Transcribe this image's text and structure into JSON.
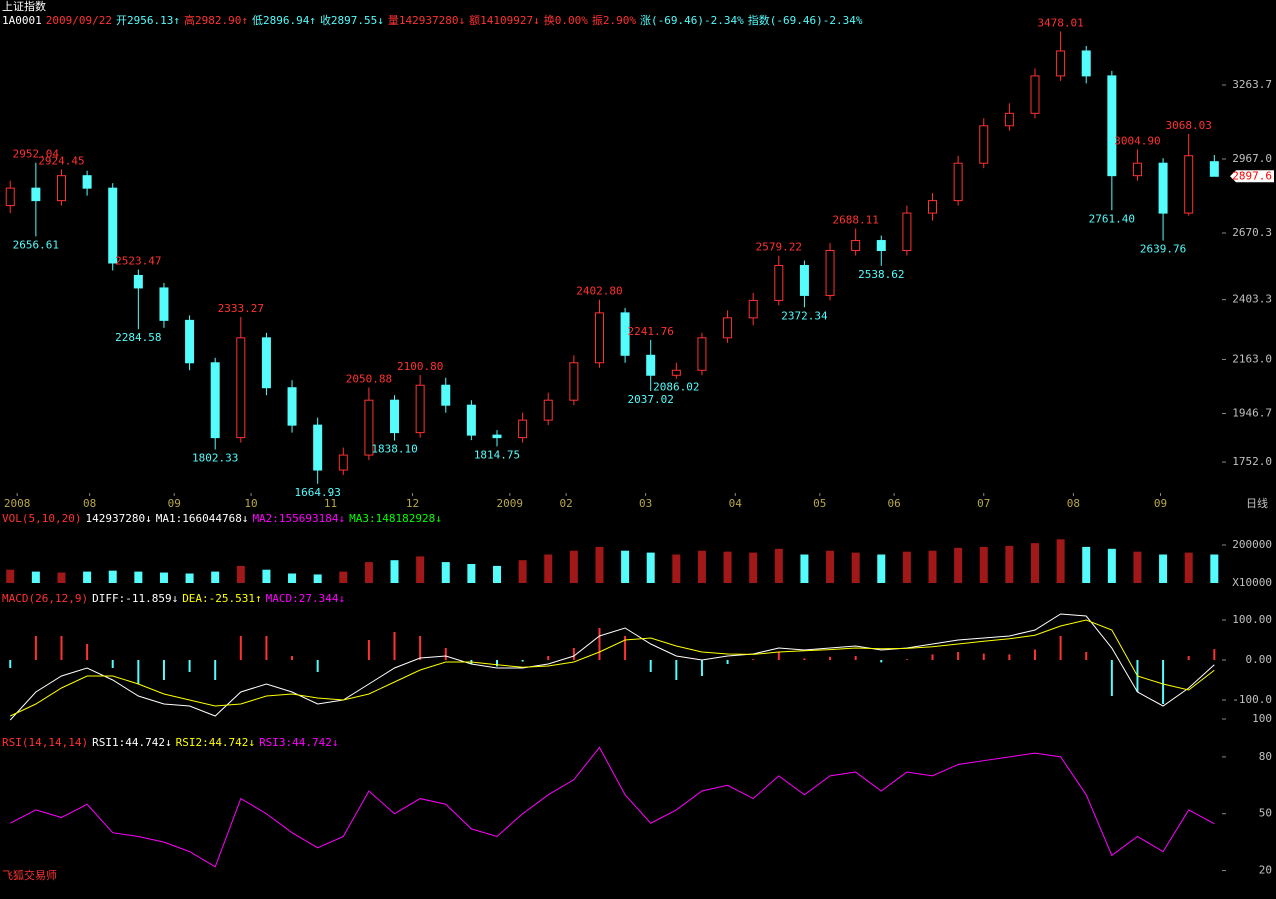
{
  "header": {
    "title": "上证指数",
    "items": [
      {
        "text": "1A0001",
        "color": "#ffffff"
      },
      {
        "text": "2009/09/22",
        "color": "#ff3232"
      },
      {
        "text": "开2956.13↑",
        "color": "#54fcfc"
      },
      {
        "text": "高2982.90↑",
        "color": "#ff3232"
      },
      {
        "text": "低2896.94↑",
        "color": "#54fcfc"
      },
      {
        "text": "收2897.55↓",
        "color": "#54fcfc"
      },
      {
        "text": "量142937280↓",
        "color": "#ff3232"
      },
      {
        "text": "额14109927↓",
        "color": "#ff3232"
      },
      {
        "text": "换0.00%",
        "color": "#ff3232"
      },
      {
        "text": "振2.90%",
        "color": "#ff3232"
      },
      {
        "text": "涨(-69.46)-2.34%",
        "color": "#54fcfc"
      },
      {
        "text": "指数(-69.46)-2.34%",
        "color": "#54fcfc"
      }
    ]
  },
  "footer": "飞狐交易师",
  "chart_data": [
    {
      "type": "candlestick",
      "open": [
        2780,
        2850,
        2800,
        2900,
        2850,
        2500,
        2450,
        2320,
        2150,
        1850,
        2250,
        2050,
        1900,
        1720,
        1780,
        2000,
        1870,
        2060,
        1980,
        1860,
        1850,
        1920,
        2000,
        2150,
        2350,
        2180,
        2100,
        2120,
        2250,
        2330,
        2400,
        2540,
        2420,
        2600,
        2640,
        2600,
        2750,
        2800,
        2950,
        3100,
        3150,
        3300,
        3400,
        3300,
        2900,
        2950,
        2750,
        2956.13
      ],
      "high": [
        2880,
        2952.04,
        2924.45,
        2920,
        2870,
        2523.47,
        2470,
        2340,
        2170,
        2333.27,
        2270,
        2080,
        1930,
        1810,
        2050.88,
        2020,
        2100.8,
        2090,
        2000,
        1880,
        1950,
        2030,
        2180,
        2402.8,
        2370,
        2241.76,
        2150,
        2270,
        2360,
        2430,
        2579.22,
        2560,
        2630,
        2688.11,
        2660,
        2780,
        2830,
        2980,
        3130,
        3190,
        3330,
        3478.01,
        3420,
        3320,
        3004.9,
        2970,
        3068.03,
        2982.9
      ],
      "low": [
        2750,
        2656.61,
        2780,
        2820,
        2520,
        2284.58,
        2290,
        2120,
        1802.33,
        1830,
        2020,
        1870,
        1664.93,
        1700,
        1760,
        1838.1,
        1850,
        1950,
        1840,
        1814.75,
        1830,
        1900,
        1980,
        2130,
        2150,
        2037.02,
        2086.02,
        2100,
        2230,
        2300,
        2380,
        2372.34,
        2400,
        2580,
        2538.62,
        2580,
        2720,
        2780,
        2930,
        3080,
        3130,
        3280,
        3270,
        2761.4,
        2880,
        2639.76,
        2740,
        2896.94
      ],
      "close": [
        2850,
        2800,
        2900,
        2850,
        2550,
        2450,
        2320,
        2150,
        1850,
        2250,
        2050,
        1900,
        1720,
        1780,
        2000,
        1870,
        2060,
        1980,
        1860,
        1850,
        1920,
        2000,
        2150,
        2350,
        2180,
        2100,
        2120,
        2250,
        2330,
        2400,
        2540,
        2420,
        2600,
        2640,
        2600,
        2750,
        2800,
        2950,
        3100,
        3150,
        3300,
        3400,
        3300,
        2900,
        2950,
        2750,
        2980,
        2897.55
      ],
      "up_color": "#ff3232",
      "down_color": "#54fcfc",
      "xlim": [
        -0.4,
        47.3
      ],
      "xticks": [
        {
          "value": 0.27,
          "label": "2008"
        },
        {
          "value": 3.1,
          "label": "08"
        },
        {
          "value": 6.4,
          "label": "09"
        },
        {
          "value": 9.4,
          "label": "10"
        },
        {
          "value": 12.5,
          "label": "11"
        },
        {
          "value": 15.7,
          "label": "12"
        },
        {
          "value": 19.5,
          "label": "2009"
        },
        {
          "value": 21.7,
          "label": "02"
        },
        {
          "value": 24.8,
          "label": "03"
        },
        {
          "value": 28.3,
          "label": "04"
        },
        {
          "value": 31.6,
          "label": "05"
        },
        {
          "value": 34.5,
          "label": "06"
        },
        {
          "value": 38,
          "label": "07"
        },
        {
          "value": 41.5,
          "label": "08"
        },
        {
          "value": 44.9,
          "label": "09"
        }
      ],
      "x_label": "日线",
      "ylim": [
        1640,
        3484
      ],
      "yticks": [
        3263.7,
        {
          "value": 2967,
          "label": "2967.0"
        },
        2670.3,
        2403.3,
        {
          "value": 2163,
          "label": "2163.0"
        },
        1946.7,
        {
          "value": 1752,
          "label": "1752.0"
        }
      ],
      "high_labels": [
        {
          "index": 1,
          "label": "2952.04"
        },
        {
          "index": 2,
          "label": "2924.45"
        },
        {
          "index": 5,
          "label": "2523.47"
        },
        {
          "index": 9,
          "label": "2333.27"
        },
        {
          "index": 14,
          "label": "2050.88"
        },
        {
          "index": 16,
          "label": "2100.80"
        },
        {
          "index": 23,
          "label": "2402.80"
        },
        {
          "index": 25,
          "label": "2241.76"
        },
        {
          "index": 30,
          "label": "2579.22"
        },
        {
          "index": 33,
          "label": "2688.11"
        },
        {
          "index": 41,
          "label": "3478.01"
        },
        {
          "index": 44,
          "label": "3004.90"
        },
        {
          "index": 46,
          "label": "3068.03"
        }
      ],
      "low_labels": [
        {
          "index": 1,
          "label": "2656.61"
        },
        {
          "index": 5,
          "label": "2284.58"
        },
        {
          "index": 8,
          "label": "1802.33"
        },
        {
          "index": 12,
          "label": "1664.93"
        },
        {
          "index": 15,
          "label": "1838.10"
        },
        {
          "index": 19,
          "label": "1814.75"
        },
        {
          "index": 25,
          "label": "2037.02"
        },
        {
          "index": 26,
          "label": "2086.02"
        },
        {
          "index": 31,
          "label": "2372.34"
        },
        {
          "index": 34,
          "label": "2538.62"
        },
        {
          "index": 43,
          "label": "2761.40"
        },
        {
          "index": 45,
          "label": "2639.76"
        }
      ],
      "last_price": {
        "value": 2897.55,
        "label": "2897.6"
      }
    },
    {
      "type": "bar",
      "values": [
        70000,
        60000,
        55000,
        60000,
        65000,
        60000,
        55000,
        50000,
        60000,
        90000,
        70000,
        50000,
        45000,
        60000,
        110000,
        120000,
        140000,
        110000,
        100000,
        90000,
        120000,
        150000,
        170000,
        190000,
        170000,
        160000,
        150000,
        170000,
        165000,
        160000,
        180000,
        150000,
        170000,
        160000,
        150000,
        165000,
        170000,
        185000,
        190000,
        195000,
        210000,
        230000,
        190000,
        180000,
        165000,
        150000,
        160000,
        150000
      ],
      "ylim": [
        0,
        300000
      ],
      "yticks": [
        200000
      ],
      "unit_label": "X10000",
      "legend": [
        {
          "text": "VOL(5,10,20)",
          "color": "#ff3232"
        },
        {
          "text": "142937280↓",
          "color": "#ffffff"
        },
        {
          "text": "MA1:166044768↓",
          "color": "#ffffff"
        },
        {
          "text": "MA2:155693184↓",
          "color": "#ff00ff"
        },
        {
          "text": "MA3:148182928↓",
          "color": "#00ff00"
        }
      ]
    },
    {
      "type": "macd",
      "lines": [
        {
          "color": "#ffffff",
          "values": [
            -150,
            -80,
            -40,
            -20,
            -50,
            -90,
            -110,
            -115,
            -140,
            -80,
            -60,
            -80,
            -110,
            -100,
            -60,
            -20,
            5,
            10,
            -10,
            -20,
            -20,
            -10,
            10,
            60,
            80,
            40,
            10,
            0,
            10,
            15,
            30,
            25,
            30,
            35,
            25,
            30,
            40,
            50,
            55,
            60,
            75,
            115,
            110,
            30,
            -80,
            -115,
            -70,
            -11.859
          ]
        },
        {
          "color": "#ffff00",
          "values": [
            -140,
            -110,
            -70,
            -40,
            -40,
            -60,
            -85,
            -100,
            -115,
            -110,
            -90,
            -85,
            -95,
            -100,
            -85,
            -55,
            -25,
            -5,
            -5,
            -12,
            -18,
            -15,
            -5,
            20,
            50,
            55,
            35,
            20,
            15,
            14,
            20,
            23,
            26,
            30,
            28,
            29,
            33,
            40,
            47,
            53,
            62,
            85,
            100,
            75,
            -40,
            -60,
            -75,
            -25.531
          ]
        }
      ],
      "hist": {
        "up_color": "#ff3232",
        "down_color": "#54fcfc",
        "values": [
          -20,
          60,
          60,
          40,
          -20,
          -60,
          -50,
          -30,
          -50,
          60,
          60,
          10,
          -30,
          0,
          50,
          70,
          60,
          30,
          -10,
          -16,
          -4,
          10,
          30,
          80,
          60,
          -30,
          -50,
          -40,
          -10,
          2,
          20,
          4,
          8,
          10,
          -6,
          2,
          14,
          20,
          16,
          14,
          26,
          60,
          20,
          -90,
          -80,
          -110,
          10,
          27.344
        ]
      },
      "ylim": [
        -162.5,
        137.5
      ],
      "yticks": [
        {
          "value": 100,
          "label": "100.00"
        },
        {
          "value": 0,
          "label": "0.00"
        },
        {
          "value": -100,
          "label": "-100.0"
        }
      ],
      "legend": [
        {
          "text": "MACD(26,12,9)",
          "color": "#ff3232"
        },
        {
          "text": "DIFF:-11.859↓",
          "color": "#ffffff"
        },
        {
          "text": "DEA:-25.531↑",
          "color": "#ffff00"
        },
        {
          "text": "MACD:27.344↓",
          "color": "#ff00ff"
        }
      ]
    },
    {
      "type": "line",
      "color": "#ff00ff",
      "values": [
        45,
        52,
        48,
        55,
        40,
        38,
        35,
        30,
        22,
        58,
        50,
        40,
        32,
        38,
        62,
        50,
        58,
        55,
        42,
        38,
        50,
        60,
        68,
        85,
        60,
        45,
        52,
        62,
        65,
        58,
        70,
        60,
        70,
        72,
        62,
        72,
        70,
        76,
        78,
        80,
        82,
        80,
        60,
        28,
        38,
        30,
        52,
        44.742
      ],
      "ylim": [
        5,
        100
      ],
      "yticks": [
        100,
        80,
        50,
        20
      ],
      "legend": [
        {
          "text": "RSI(14,14,14)",
          "color": "#ff3232"
        },
        {
          "text": "RSI1:44.742↓",
          "color": "#ffffff"
        },
        {
          "text": "RSI2:44.742↓",
          "color": "#ffff00"
        },
        {
          "text": "RSI3:44.742↓",
          "color": "#ff00ff"
        }
      ]
    }
  ]
}
